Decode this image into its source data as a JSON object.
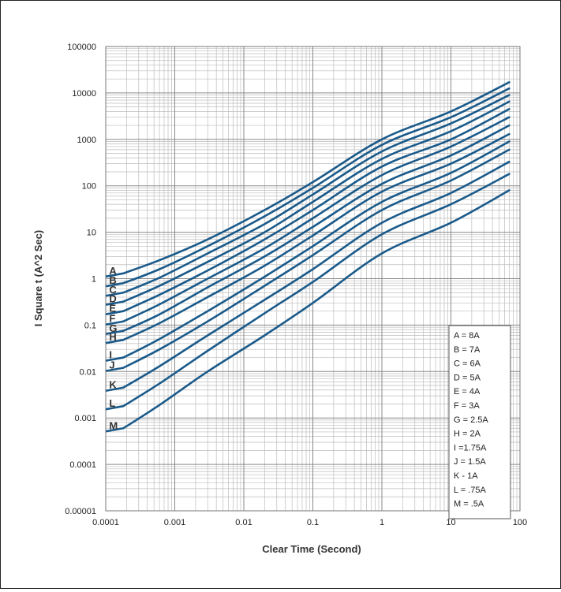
{
  "chart_data": {
    "type": "line",
    "xscale": "log",
    "yscale": "log",
    "xlabel": "Clear Time (Second)",
    "ylabel": "I Square t (A^2 Sec)",
    "xlim": [
      0.0001,
      100
    ],
    "ylim": [
      1e-05,
      100000
    ],
    "x_ticks": [
      "0.0001",
      "0.001",
      "0.01",
      "0.1",
      "1",
      "10",
      "100"
    ],
    "y_ticks": [
      "0.00001",
      "0.0001",
      "0.001",
      "0.01",
      "0.1",
      "1",
      "10",
      "100",
      "1000",
      "10000",
      "100000"
    ],
    "grid": true,
    "line_color": "#1a5a8a",
    "legend_placement": "bottom-right",
    "series": [
      {
        "name": "A",
        "rating": "8A",
        "legend_text": "A =    8A",
        "x": [
          0.00018,
          0.0006,
          0.003,
          0.02,
          0.1,
          1,
          10,
          70
        ],
        "y": [
          1.3,
          2.5,
          7,
          30,
          120,
          1000,
          4000,
          17000
        ]
      },
      {
        "name": "B",
        "rating": "7A",
        "legend_text": "B =    7A",
        "x": [
          0.00018,
          0.0006,
          0.003,
          0.02,
          0.1,
          1,
          10,
          70
        ],
        "y": [
          0.8,
          1.6,
          5,
          22,
          90,
          760,
          3000,
          12500
        ]
      },
      {
        "name": "C",
        "rating": "6A",
        "legend_text": "C =    6A",
        "x": [
          0.00018,
          0.0006,
          0.003,
          0.02,
          0.1,
          1,
          10,
          70
        ],
        "y": [
          0.5,
          1.05,
          3.5,
          15,
          65,
          550,
          2200,
          9000
        ]
      },
      {
        "name": "D",
        "rating": "5A",
        "legend_text": "D =    5A",
        "x": [
          0.00018,
          0.0006,
          0.003,
          0.02,
          0.1,
          1,
          10,
          70
        ],
        "y": [
          0.32,
          0.7,
          2.3,
          10,
          45,
          380,
          1500,
          6500
        ]
      },
      {
        "name": "E",
        "rating": "4A",
        "legend_text": "E =    4A",
        "x": [
          0.00018,
          0.0006,
          0.003,
          0.02,
          0.1,
          1,
          10,
          70
        ],
        "y": [
          0.2,
          0.45,
          1.5,
          7,
          30,
          260,
          1000,
          4500
        ]
      },
      {
        "name": "F",
        "rating": "3A",
        "legend_text": "F =    3A",
        "x": [
          0.00018,
          0.0006,
          0.003,
          0.02,
          0.1,
          1,
          10,
          70
        ],
        "y": [
          0.12,
          0.28,
          1,
          4.5,
          20,
          170,
          700,
          3000
        ]
      },
      {
        "name": "G",
        "rating": "2.5A",
        "legend_text": "G =  2.5A",
        "x": [
          0.00018,
          0.0006,
          0.003,
          0.02,
          0.1,
          1,
          10,
          70
        ],
        "y": [
          0.075,
          0.17,
          0.65,
          3,
          13,
          110,
          450,
          2000
        ]
      },
      {
        "name": "H",
        "rating": "2A",
        "legend_text": "H =    2A",
        "x": [
          0.00018,
          0.0006,
          0.003,
          0.02,
          0.1,
          1,
          10,
          70
        ],
        "y": [
          0.048,
          0.11,
          0.4,
          1.9,
          8.5,
          75,
          300,
          1300
        ]
      },
      {
        "name": "I",
        "rating": "1.75A",
        "legend_text": "I   =1.75A",
        "x": [
          0.00018,
          0.0006,
          0.003,
          0.02,
          0.1,
          1,
          10,
          70
        ],
        "y": [
          0.02,
          0.05,
          0.2,
          1.1,
          5,
          45,
          190,
          900
        ]
      },
      {
        "name": "J",
        "rating": "1.5A",
        "legend_text": "J  =  1.5A",
        "x": [
          0.00018,
          0.0006,
          0.003,
          0.02,
          0.1,
          1,
          10,
          70
        ],
        "y": [
          0.012,
          0.03,
          0.12,
          0.7,
          3.2,
          30,
          130,
          600
        ]
      },
      {
        "name": "K",
        "rating": "1A",
        "legend_text": "K  -    1A",
        "x": [
          0.00018,
          0.0006,
          0.003,
          0.02,
          0.1,
          1,
          10,
          70
        ],
        "y": [
          0.0045,
          0.013,
          0.06,
          0.35,
          1.6,
          16,
          70,
          330
        ]
      },
      {
        "name": "L",
        "rating": ".75A",
        "legend_text": "L  = .75A",
        "x": [
          0.00018,
          0.0006,
          0.003,
          0.02,
          0.1,
          1,
          10,
          70
        ],
        "y": [
          0.0018,
          0.0055,
          0.028,
          0.18,
          0.85,
          9,
          40,
          180
        ]
      },
      {
        "name": "M",
        "rating": ".5A",
        "legend_text": "M =   .5A",
        "x": [
          0.00018,
          0.0006,
          0.003,
          0.02,
          0.1,
          1,
          10,
          70
        ],
        "y": [
          0.0006,
          0.0019,
          0.01,
          0.06,
          0.3,
          3.5,
          16,
          80
        ]
      }
    ]
  }
}
